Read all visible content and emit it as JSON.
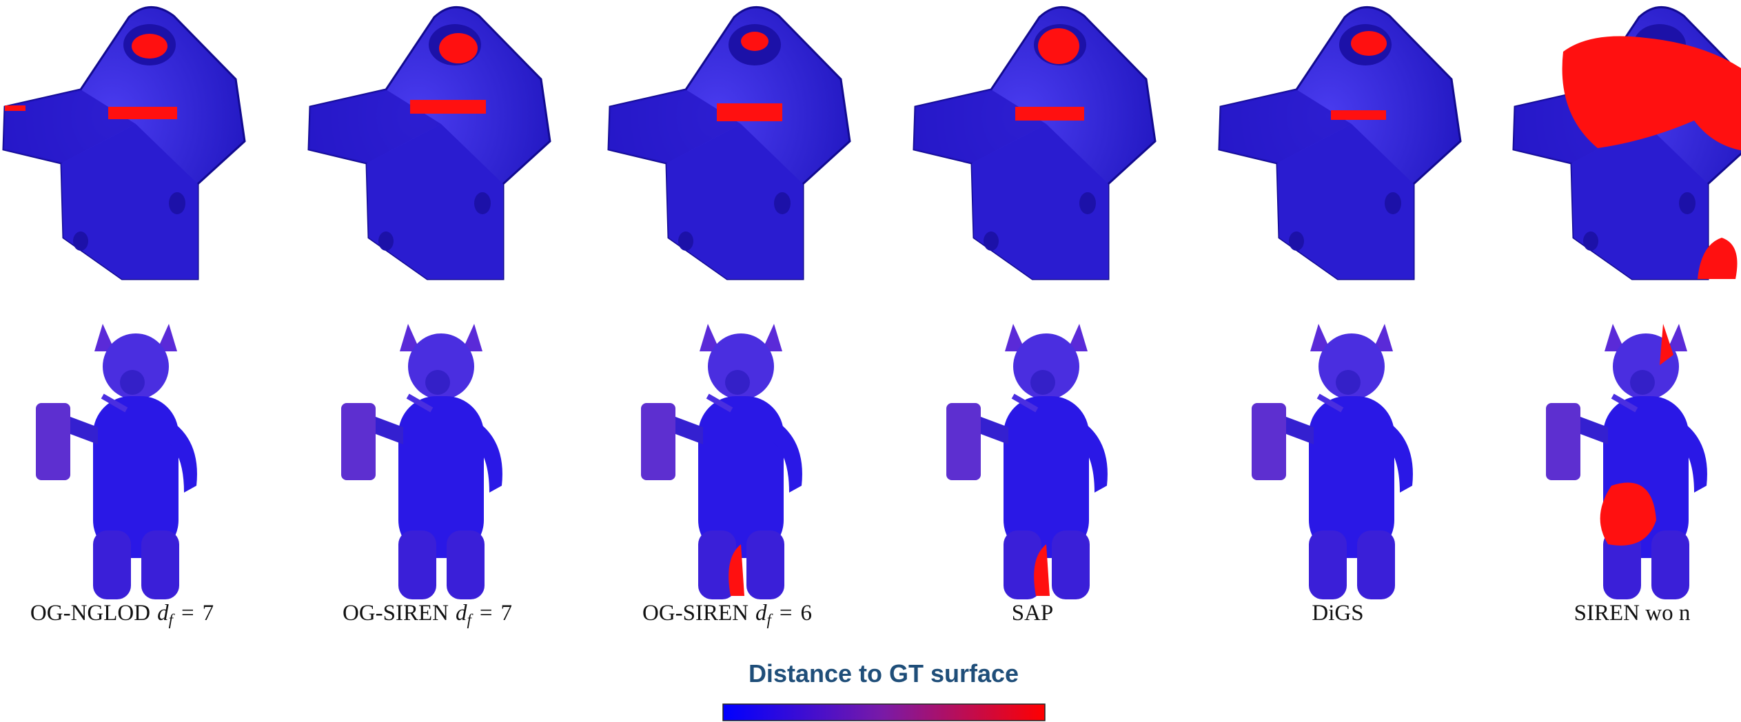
{
  "columns": [
    {
      "name": "OG-NGLOD",
      "parameter": {
        "symbol": "d",
        "subscript": "f",
        "relation": "=",
        "value": "7"
      }
    },
    {
      "name": "OG-SIREN",
      "parameter": {
        "symbol": "d",
        "subscript": "f",
        "relation": "=",
        "value": "7"
      }
    },
    {
      "name": "OG-SIREN",
      "parameter": {
        "symbol": "d",
        "subscript": "f",
        "relation": "=",
        "value": "6"
      }
    },
    {
      "name": "SAP"
    },
    {
      "name": "DiGS"
    },
    {
      "name": "SIREN wo n"
    }
  ],
  "colorbar": {
    "title": "Distance to GT surface"
  }
}
